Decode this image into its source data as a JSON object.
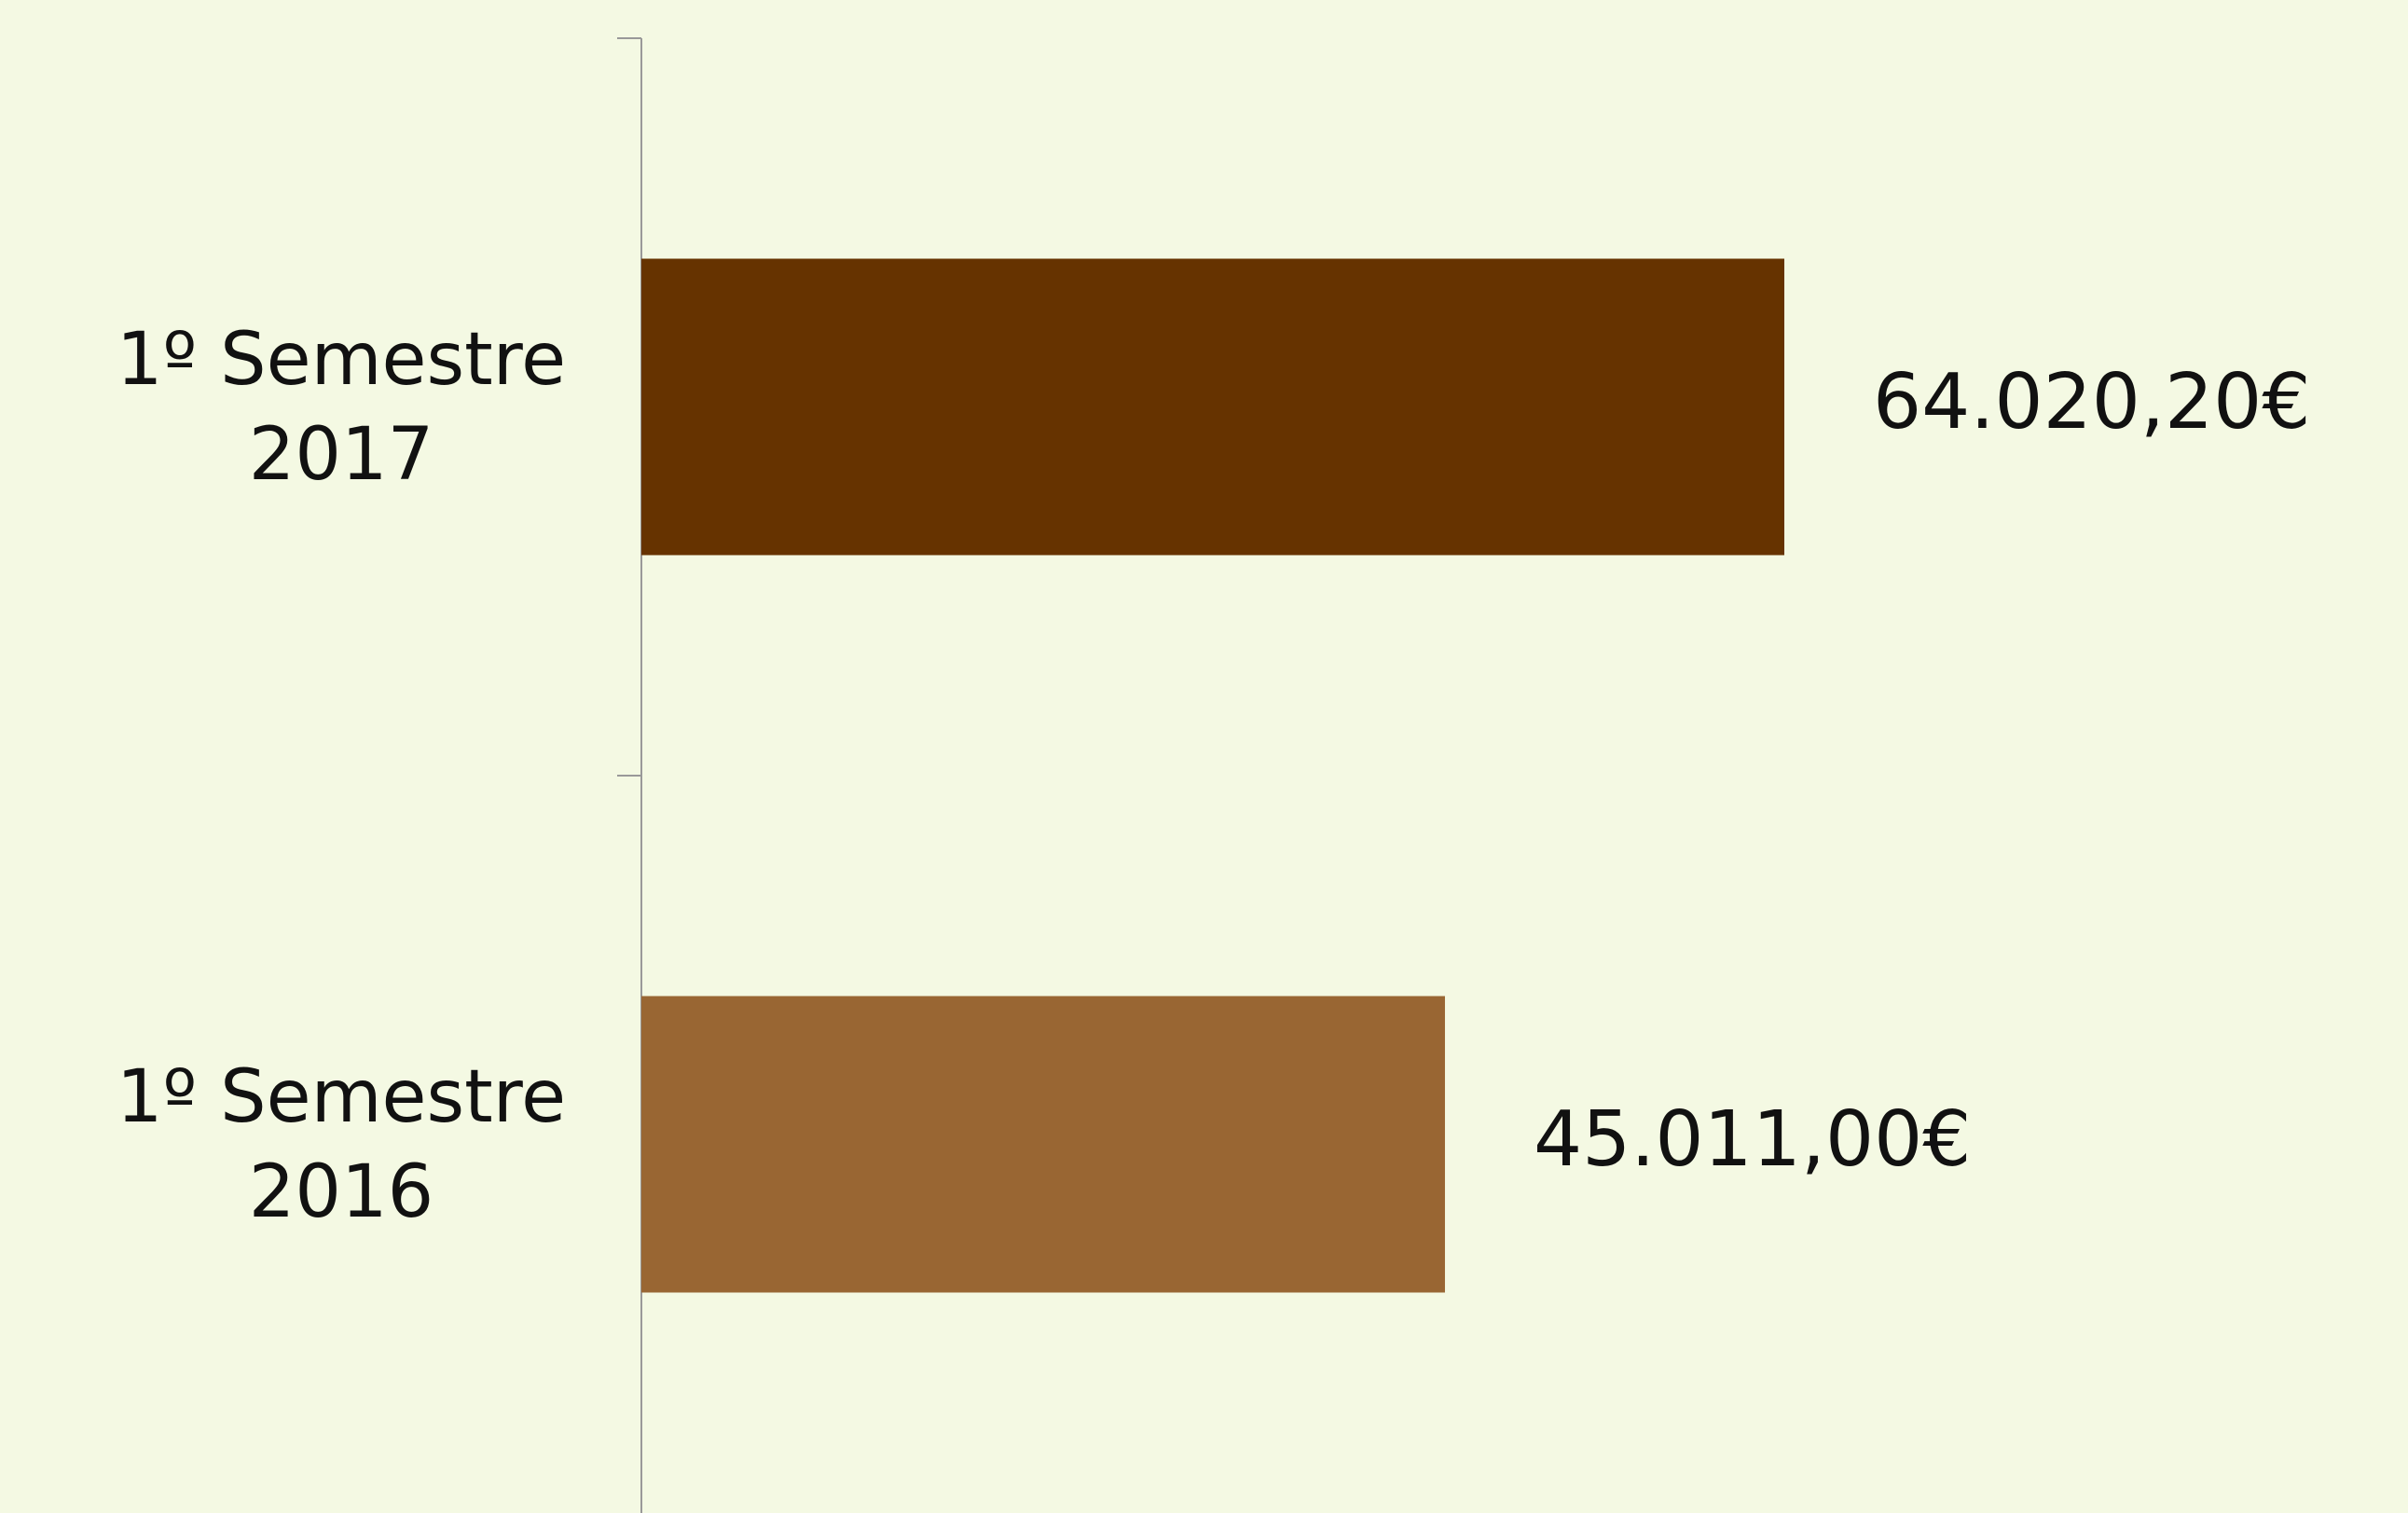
{
  "chart_data": {
    "type": "bar",
    "orientation": "horizontal",
    "categories": [
      "1º Semestre 2017",
      "1º Semestre 2016"
    ],
    "values": [
      64020.2,
      45011.0
    ],
    "value_labels": [
      "64.020,20€",
      "45.011,00€"
    ],
    "colors": [
      "#663300",
      "#996633"
    ]
  }
}
